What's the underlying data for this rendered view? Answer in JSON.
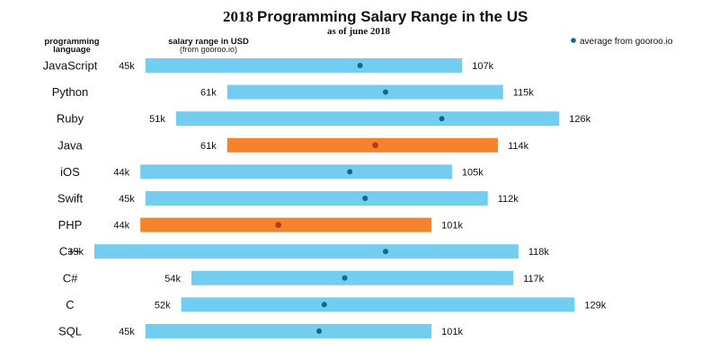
{
  "header": {
    "title_year": "2018",
    "title_main": "Programming Salary Range in the US",
    "subtitle": "as of june 2018",
    "col_language_line1": "programming",
    "col_language_line2": "language",
    "col_salary_line1": "salary range in USD",
    "col_salary_line2": "(from gooroo.io)",
    "legend_label": "average from gooroo.io"
  },
  "colors": {
    "range_bar": "#73cdf0",
    "highlight_bar": "#f5822c",
    "average_dot": "#0e6a80",
    "average_dot_highlight": "#b3401a"
  },
  "chart_data": {
    "type": "bar",
    "orientation": "horizontal-range",
    "title": "2018 Programming Salary Range in the US",
    "subtitle": "as of june 2018",
    "unit": "k USD",
    "legend": "average from gooroo.io",
    "legend_position": "top-right",
    "categories": [
      "JavaScript",
      "Python",
      "Ruby",
      "Java",
      "iOS",
      "Swift",
      "PHP",
      "C++",
      "C#",
      "C",
      "SQL"
    ],
    "min_labels": [
      "45k",
      "61k",
      "51k",
      "61k",
      "44k",
      "45k",
      "44k",
      "35k",
      "54k",
      "52k",
      "45k"
    ],
    "max_labels": [
      "107k",
      "115k",
      "126k",
      "114k",
      "105k",
      "112k",
      "101k",
      "118k",
      "117k",
      "129k",
      "101k"
    ],
    "min": [
      45,
      61,
      51,
      61,
      44,
      45,
      44,
      35,
      54,
      52,
      45
    ],
    "max": [
      107,
      115,
      126,
      114,
      105,
      112,
      101,
      118,
      117,
      129,
      101
    ],
    "average": [
      87,
      92,
      103,
      90,
      85,
      88,
      71,
      92,
      84,
      80,
      79
    ],
    "highlighted": [
      false,
      false,
      false,
      true,
      false,
      false,
      true,
      false,
      false,
      false,
      false
    ]
  }
}
